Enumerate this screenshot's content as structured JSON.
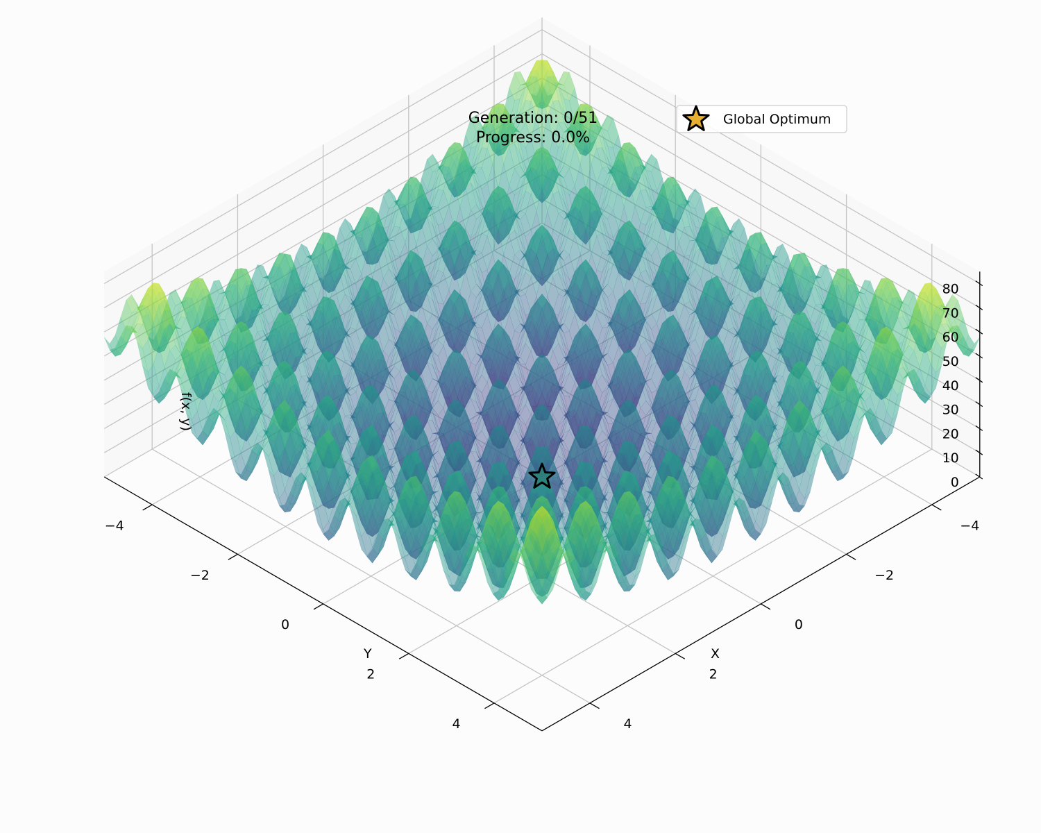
{
  "chart_data": {
    "type": "surface",
    "title_line1": "Generation: 0/51",
    "title_line2": "Progress: 0.0%",
    "function": "rastrigin",
    "xlabel": "X",
    "ylabel": "Y",
    "zlabel": "f(x, y)",
    "xlim": [
      -5.12,
      5.12
    ],
    "ylim": [
      -5.12,
      5.12
    ],
    "zlim": [
      0,
      85
    ],
    "x_ticks": [
      {
        "value": -4,
        "label": "−4"
      },
      {
        "value": -2,
        "label": "−2"
      },
      {
        "value": 0,
        "label": "0"
      },
      {
        "value": 2,
        "label": "2"
      },
      {
        "value": 4,
        "label": "4"
      }
    ],
    "y_ticks": [
      {
        "value": -4,
        "label": "−4"
      },
      {
        "value": -2,
        "label": "−2"
      },
      {
        "value": 0,
        "label": "0"
      },
      {
        "value": 2,
        "label": "2"
      },
      {
        "value": 4,
        "label": "4"
      }
    ],
    "z_ticks": [
      {
        "value": 0,
        "label": "0"
      },
      {
        "value": 10,
        "label": "10"
      },
      {
        "value": 20,
        "label": "20"
      },
      {
        "value": 30,
        "label": "30"
      },
      {
        "value": 40,
        "label": "40"
      },
      {
        "value": 50,
        "label": "50"
      },
      {
        "value": 60,
        "label": "60"
      },
      {
        "value": 70,
        "label": "70"
      },
      {
        "value": 80,
        "label": "80"
      }
    ],
    "colormap": "viridis",
    "surface_alpha": 0.45,
    "grid": true,
    "global_optimum": {
      "x": 0,
      "y": 0,
      "z": 0,
      "color": "#e8b030",
      "edge": "#000000"
    },
    "legend": {
      "label": "Global Optimum",
      "placement": "top-right"
    }
  }
}
